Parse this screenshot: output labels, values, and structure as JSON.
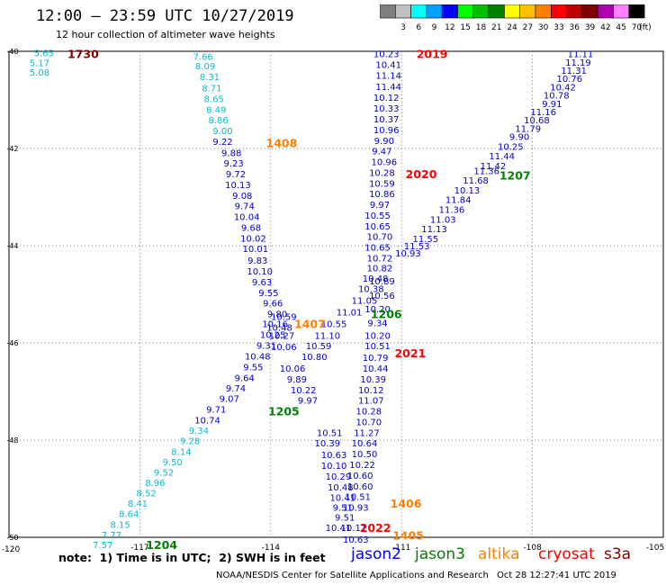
{
  "header": {
    "title": "12:00 – 23:59 UTC 10/27/2019",
    "subtitle": "12 hour collection of altimeter wave heights"
  },
  "legend": {
    "unit": "(ft)",
    "bins": [
      {
        "label": "",
        "color": "#808080"
      },
      {
        "label": "3",
        "color": "#c0c0c0"
      },
      {
        "label": "6",
        "color": "#00ffff"
      },
      {
        "label": "9",
        "color": "#00a0ff"
      },
      {
        "label": "12",
        "color": "#0000ff"
      },
      {
        "label": "15",
        "color": "#00ff00"
      },
      {
        "label": "18",
        "color": "#00c000"
      },
      {
        "label": "21",
        "color": "#008000"
      },
      {
        "label": "24",
        "color": "#ffff00"
      },
      {
        "label": "27",
        "color": "#ffc000"
      },
      {
        "label": "30",
        "color": "#ff8000"
      },
      {
        "label": "33",
        "color": "#ff0000"
      },
      {
        "label": "36",
        "color": "#c00000"
      },
      {
        "label": "39",
        "color": "#800000"
      },
      {
        "label": "42",
        "color": "#b000b0"
      },
      {
        "label": "45",
        "color": "#ff80ff"
      },
      {
        "label": "70",
        "color": "#000000"
      }
    ]
  },
  "map": {
    "lon_ticks": [
      "-120",
      "-117",
      "-114",
      "-111",
      "-108",
      "-105"
    ],
    "lat_ticks": [
      "-40",
      "-42",
      "-44",
      "-46",
      "-48",
      "-50"
    ],
    "lon_range": [
      -120,
      -105
    ],
    "lat_range": [
      -50,
      -40
    ]
  },
  "tracks": [
    {
      "color": "#00bcd4",
      "points": [
        {
          "t": "5.65",
          "lat": -40.03,
          "lon": -119.2
        },
        {
          "t": "5.17",
          "lat": -40.23,
          "lon": -119.3
        },
        {
          "t": "5.08",
          "lat": -40.43,
          "lon": -119.3
        }
      ]
    },
    {
      "color": "#00bcd4",
      "points": [
        {
          "t": "7.66",
          "lat": -40.1,
          "lon": -115.55
        },
        {
          "t": "8.09",
          "lat": -40.3,
          "lon": -115.5
        },
        {
          "t": "8.31",
          "lat": -40.52,
          "lon": -115.4
        },
        {
          "t": "8.71",
          "lat": -40.75,
          "lon": -115.35
        },
        {
          "t": "8.65",
          "lat": -40.97,
          "lon": -115.3
        },
        {
          "t": "8.49",
          "lat": -41.19,
          "lon": -115.25
        },
        {
          "t": "8.86",
          "lat": -41.41,
          "lon": -115.2
        },
        {
          "t": "9.00",
          "lat": -41.63,
          "lon": -115.1
        }
      ]
    },
    {
      "color": "#0000c8",
      "points": [
        {
          "t": "9.22",
          "lat": -41.85,
          "lon": -115.1
        },
        {
          "t": "9.88",
          "lat": -42.08,
          "lon": -114.9
        },
        {
          "t": "9.23",
          "lat": -42.3,
          "lon": -114.85
        },
        {
          "t": "9.72",
          "lat": -42.52,
          "lon": -114.8
        },
        {
          "t": "10.13",
          "lat": -42.74,
          "lon": -114.75
        },
        {
          "t": "9.08",
          "lat": -42.96,
          "lon": -114.65
        },
        {
          "t": "9.74",
          "lat": -43.18,
          "lon": -114.6
        },
        {
          "t": "10.04",
          "lat": -43.4,
          "lon": -114.55
        },
        {
          "t": "9.68",
          "lat": -43.62,
          "lon": -114.45
        },
        {
          "t": "10.02",
          "lat": -43.84,
          "lon": -114.4
        },
        {
          "t": "10.01",
          "lat": -44.06,
          "lon": -114.35
        },
        {
          "t": "9.83",
          "lat": -44.3,
          "lon": -114.3
        },
        {
          "t": "10.10",
          "lat": -44.52,
          "lon": -114.25
        },
        {
          "t": "9.63",
          "lat": -44.74,
          "lon": -114.2
        },
        {
          "t": "9.55",
          "lat": -44.96,
          "lon": -114.05
        },
        {
          "t": "9.66",
          "lat": -45.18,
          "lon": -113.95
        },
        {
          "t": "9.80",
          "lat": -45.4,
          "lon": -113.85
        },
        {
          "t": "10.59",
          "lat": -45.45,
          "lon": -113.7
        },
        {
          "t": "10.16",
          "lat": -45.6,
          "lon": -113.9
        },
        {
          "t": "10.48",
          "lat": -45.68,
          "lon": -113.8
        },
        {
          "t": "10.25",
          "lat": -45.82,
          "lon": -113.95
        },
        {
          "t": "10.27",
          "lat": -45.84,
          "lon": -113.75
        },
        {
          "t": "9.31",
          "lat": -46.05,
          "lon": -114.1
        },
        {
          "t": "10.06",
          "lat": -46.07,
          "lon": -113.7
        },
        {
          "t": "10.48",
          "lat": -46.27,
          "lon": -114.3
        },
        {
          "t": "9.55",
          "lat": -46.49,
          "lon": -114.4
        },
        {
          "t": "9.64",
          "lat": -46.71,
          "lon": -114.6
        },
        {
          "t": "9.74",
          "lat": -46.93,
          "lon": -114.8
        },
        {
          "t": "9.07",
          "lat": -47.14,
          "lon": -114.95
        },
        {
          "t": "9.71",
          "lat": -47.36,
          "lon": -115.25
        },
        {
          "t": "10.74",
          "lat": -47.58,
          "lon": -115.45
        }
      ]
    },
    {
      "color": "#00bcd4",
      "points": [
        {
          "t": "9.34",
          "lat": -47.8,
          "lon": -115.65
        },
        {
          "t": "9.28",
          "lat": -48.01,
          "lon": -115.85
        },
        {
          "t": "8.14",
          "lat": -48.23,
          "lon": -116.05
        },
        {
          "t": "9.50",
          "lat": -48.44,
          "lon": -116.25
        },
        {
          "t": "9.52",
          "lat": -48.66,
          "lon": -116.45
        },
        {
          "t": "8.96",
          "lat": -48.87,
          "lon": -116.65
        },
        {
          "t": "8.52",
          "lat": -49.08,
          "lon": -116.85
        },
        {
          "t": "8.41",
          "lat": -49.3,
          "lon": -117.05
        },
        {
          "t": "8.64",
          "lat": -49.51,
          "lon": -117.25
        },
        {
          "t": "8.15",
          "lat": -49.73,
          "lon": -117.45
        },
        {
          "t": "7.77",
          "lat": -49.94,
          "lon": -117.65
        },
        {
          "t": "7.57",
          "lat": -50.15,
          "lon": -117.85
        }
      ]
    },
    {
      "color": "#0000c8",
      "points": [
        {
          "t": "10.23",
          "lat": -40.05,
          "lon": -111.35
        },
        {
          "t": "10.41",
          "lat": -40.27,
          "lon": -111.3
        },
        {
          "t": "11.14",
          "lat": -40.49,
          "lon": -111.3
        },
        {
          "t": "11.44",
          "lat": -40.72,
          "lon": -111.3
        },
        {
          "t": "10.12",
          "lat": -40.94,
          "lon": -111.35
        },
        {
          "t": "10.33",
          "lat": -41.17,
          "lon": -111.35
        },
        {
          "t": "10.37",
          "lat": -41.39,
          "lon": -111.35
        },
        {
          "t": "10.96",
          "lat": -41.61,
          "lon": -111.35
        },
        {
          "t": "9.90",
          "lat": -41.83,
          "lon": -111.4
        },
        {
          "t": "9.47",
          "lat": -42.05,
          "lon": -111.45
        },
        {
          "t": "10.96",
          "lat": -42.27,
          "lon": -111.4
        },
        {
          "t": "10.28",
          "lat": -42.49,
          "lon": -111.45
        },
        {
          "t": "10.59",
          "lat": -42.71,
          "lon": -111.45
        },
        {
          "t": "10.86",
          "lat": -42.93,
          "lon": -111.45
        },
        {
          "t": "9.97",
          "lat": -43.15,
          "lon": -111.5
        },
        {
          "t": "10.55",
          "lat": -43.37,
          "lon": -111.55
        },
        {
          "t": "10.65",
          "lat": -43.59,
          "lon": -111.55
        },
        {
          "t": "10.70",
          "lat": -43.81,
          "lon": -111.5
        },
        {
          "t": "10.65",
          "lat": -44.03,
          "lon": -111.55
        },
        {
          "t": "10.72",
          "lat": -44.25,
          "lon": -111.5
        },
        {
          "t": "10.82",
          "lat": -44.45,
          "lon": -111.5
        },
        {
          "t": "10.48",
          "lat": -44.67,
          "lon": -111.6
        },
        {
          "t": "10.89",
          "lat": -44.72,
          "lon": -111.45
        },
        {
          "t": "10.38",
          "lat": -44.88,
          "lon": -111.7
        },
        {
          "t": "10.56",
          "lat": -45.02,
          "lon": -111.45
        },
        {
          "t": "11.05",
          "lat": -45.12,
          "lon": -111.85
        },
        {
          "t": "10.20",
          "lat": -45.3,
          "lon": -111.55
        },
        {
          "t": "11.01",
          "lat": -45.36,
          "lon": -112.2
        },
        {
          "t": "9.34",
          "lat": -45.58,
          "lon": -111.55
        },
        {
          "t": "10.55",
          "lat": -45.6,
          "lon": -112.55
        },
        {
          "t": "11.10",
          "lat": -45.84,
          "lon": -112.7
        },
        {
          "t": "10.20",
          "lat": -45.84,
          "lon": -111.55
        },
        {
          "t": "10.59",
          "lat": -46.06,
          "lon": -112.9
        },
        {
          "t": "10.51",
          "lat": -46.06,
          "lon": -111.55
        },
        {
          "t": "10.80",
          "lat": -46.28,
          "lon": -113.0
        },
        {
          "t": "10.79",
          "lat": -46.3,
          "lon": -111.6
        },
        {
          "t": "10.44",
          "lat": -46.52,
          "lon": -111.6
        },
        {
          "t": "10.39",
          "lat": -46.74,
          "lon": -111.65
        },
        {
          "t": "10.12",
          "lat": -46.96,
          "lon": -111.7
        },
        {
          "t": "11.07",
          "lat": -47.18,
          "lon": -111.7
        },
        {
          "t": "10.28",
          "lat": -47.4,
          "lon": -111.75
        },
        {
          "t": "10.70",
          "lat": -47.62,
          "lon": -111.75
        },
        {
          "t": "11.27",
          "lat": -47.84,
          "lon": -111.8
        },
        {
          "t": "10.64",
          "lat": -48.06,
          "lon": -111.85
        },
        {
          "t": "10.50",
          "lat": -48.28,
          "lon": -111.85
        },
        {
          "t": "10.22",
          "lat": -48.5,
          "lon": -111.9
        },
        {
          "t": "10.60",
          "lat": -48.72,
          "lon": -111.95
        },
        {
          "t": "10.60",
          "lat": -48.94,
          "lon": -111.95
        },
        {
          "t": "10.51",
          "lat": -49.16,
          "lon": -112.0
        },
        {
          "t": "10.93",
          "lat": -49.38,
          "lon": -112.05
        },
        {
          "t": "10.11",
          "lat": -49.8,
          "lon": -112.1
        },
        {
          "t": "10.63",
          "lat": -50.04,
          "lon": -112.05
        }
      ]
    },
    {
      "color": "#0000c8",
      "points": [
        {
          "t": "10.51",
          "lat": -47.84,
          "lon": -112.65
        },
        {
          "t": "10.39",
          "lat": -48.06,
          "lon": -112.7
        },
        {
          "t": "10.63",
          "lat": -48.3,
          "lon": -112.55
        },
        {
          "t": "10.10",
          "lat": -48.52,
          "lon": -112.55
        },
        {
          "t": "10.29",
          "lat": -48.74,
          "lon": -112.45
        },
        {
          "t": "10.48",
          "lat": -48.96,
          "lon": -112.4
        },
        {
          "t": "10.41",
          "lat": -49.18,
          "lon": -112.35
        },
        {
          "t": "9.51",
          "lat": -49.38,
          "lon": -112.35
        },
        {
          "t": "9.51",
          "lat": -49.58,
          "lon": -112.3
        },
        {
          "t": "10.41",
          "lat": -49.8,
          "lon": -112.45
        }
      ]
    },
    {
      "color": "#0000c8",
      "points": [
        {
          "t": "10.22",
          "lat": -46.96,
          "lon": -113.25
        },
        {
          "t": "9.97",
          "lat": -47.18,
          "lon": -113.15
        },
        {
          "t": "9.89",
          "lat": -46.74,
          "lon": -113.4
        },
        {
          "t": "10.06",
          "lat": -46.52,
          "lon": -113.5
        }
      ]
    },
    {
      "color": "#0000c8",
      "points": [
        {
          "t": "11.11",
          "lat": -40.05,
          "lon": -106.9
        },
        {
          "t": "11.19",
          "lat": -40.22,
          "lon": -106.95
        },
        {
          "t": "11.31",
          "lat": -40.39,
          "lon": -107.05
        },
        {
          "t": "10.76",
          "lat": -40.56,
          "lon": -107.15
        },
        {
          "t": "10.42",
          "lat": -40.73,
          "lon": -107.3
        },
        {
          "t": "10.78",
          "lat": -40.9,
          "lon": -107.45
        },
        {
          "t": "9.91",
          "lat": -41.07,
          "lon": -107.55
        },
        {
          "t": "11.16",
          "lat": -41.24,
          "lon": -107.75
        },
        {
          "t": "10.68",
          "lat": -41.41,
          "lon": -107.9
        },
        {
          "t": "11.79",
          "lat": -41.58,
          "lon": -108.1
        },
        {
          "t": "9.90",
          "lat": -41.75,
          "lon": -108.3
        },
        {
          "t": "10.25",
          "lat": -41.95,
          "lon": -108.5
        },
        {
          "t": "11.44",
          "lat": -42.15,
          "lon": -108.7
        },
        {
          "t": "11.42",
          "lat": -42.35,
          "lon": -108.9
        },
        {
          "t": "11.36",
          "lat": -42.45,
          "lon": -109.05
        },
        {
          "t": "11.68",
          "lat": -42.65,
          "lon": -109.3
        },
        {
          "t": "10.13",
          "lat": -42.85,
          "lon": -109.5
        },
        {
          "t": "11.84",
          "lat": -43.05,
          "lon": -109.7
        },
        {
          "t": "11.36",
          "lat": -43.25,
          "lon": -109.85
        },
        {
          "t": "11.03",
          "lat": -43.45,
          "lon": -110.05
        },
        {
          "t": "11.13",
          "lat": -43.65,
          "lon": -110.25
        },
        {
          "t": "11.55",
          "lat": -43.85,
          "lon": -110.45
        },
        {
          "t": "11.53",
          "lat": -44.0,
          "lon": -110.65
        },
        {
          "t": "10.93",
          "lat": -44.15,
          "lon": -110.85
        }
      ]
    }
  ],
  "pass_labels": [
    {
      "text": "1730",
      "color": "#800000",
      "lat": -40.05,
      "lon": -118.3
    },
    {
      "text": "2019",
      "color": "#ff0000",
      "lat": -40.05,
      "lon": -110.3
    },
    {
      "text": "1408",
      "color": "#ff8000",
      "lat": -41.88,
      "lon": -113.75
    },
    {
      "text": "2020",
      "color": "#ff0000",
      "lat": -42.52,
      "lon": -110.55
    },
    {
      "text": "1207",
      "color": "#008000",
      "lat": -42.55,
      "lon": -108.4
    },
    {
      "text": "1206",
      "color": "#008000",
      "lat": -45.4,
      "lon": -111.35
    },
    {
      "text": "1407",
      "color": "#ff8000",
      "lat": -45.6,
      "lon": -113.1
    },
    {
      "text": "2021",
      "color": "#ff0000",
      "lat": -46.2,
      "lon": -110.8
    },
    {
      "text": "1205",
      "color": "#008000",
      "lat": -47.4,
      "lon": -113.7
    },
    {
      "text": "1406",
      "color": "#ff8000",
      "lat": -49.3,
      "lon": -110.9
    },
    {
      "text": "2022",
      "color": "#ff0000",
      "lat": -49.8,
      "lon": -111.6
    },
    {
      "text": "1405",
      "color": "#ff8000",
      "lat": -49.95,
      "lon": -110.85
    },
    {
      "text": "1204",
      "color": "#008000",
      "lat": -50.15,
      "lon": -116.5
    }
  ],
  "footer": {
    "note": "note:  1) Time is in UTC;  2) SWH is in feet",
    "satellites": [
      {
        "name": "jason2",
        "color": "#0000ff",
        "left": 390
      },
      {
        "name": "jason3",
        "color": "#008000",
        "left": 461
      },
      {
        "name": "altika",
        "color": "#ff8000",
        "left": 531
      },
      {
        "name": "cryosat",
        "color": "#ff0000",
        "left": 598
      },
      {
        "name": "s3a",
        "color": "#800000",
        "left": 671
      }
    ],
    "credit": "NOAA/NESDIS Center for Satellite Applications and Research",
    "timestamp": "Oct 28 12:27:41 UTC 2019"
  }
}
